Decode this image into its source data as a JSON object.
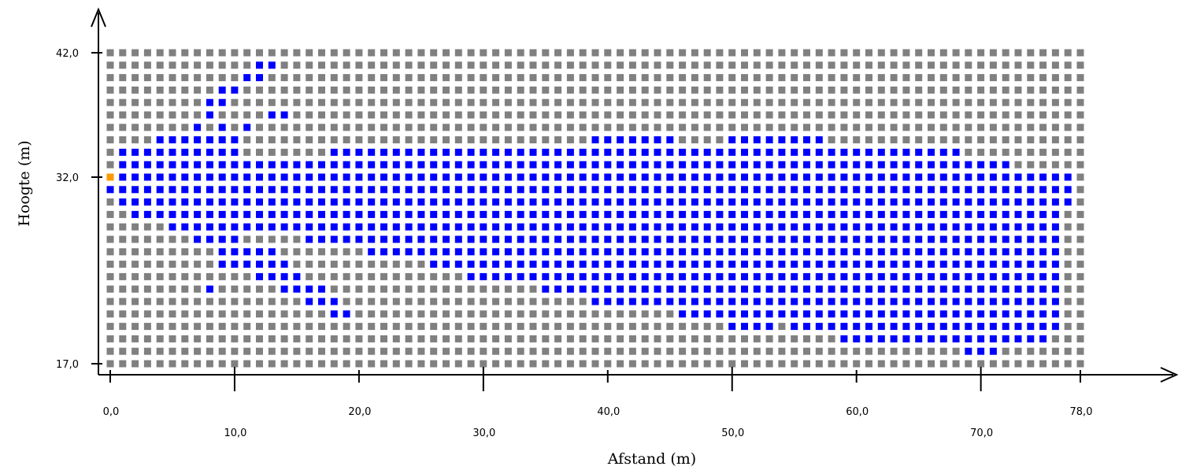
{
  "chart_data": {
    "type": "heatmap",
    "title": "",
    "xlabel": "Afstand (m)",
    "ylabel": "Hoogte (m)",
    "xlim": [
      0,
      78
    ],
    "ylim": [
      17,
      42
    ],
    "x_ticks": [
      {
        "value": 0,
        "label": "0,0",
        "row": "top"
      },
      {
        "value": 10,
        "label": "10,0",
        "row": "bottom"
      },
      {
        "value": 20,
        "label": "20,0",
        "row": "top"
      },
      {
        "value": 30,
        "label": "30,0",
        "row": "bottom"
      },
      {
        "value": 40,
        "label": "40,0",
        "row": "top"
      },
      {
        "value": 50,
        "label": "50,0",
        "row": "bottom"
      },
      {
        "value": 60,
        "label": "60,0",
        "row": "top"
      },
      {
        "value": 70,
        "label": "70,0",
        "row": "bottom"
      },
      {
        "value": 78,
        "label": "78,0",
        "row": "top"
      }
    ],
    "y_ticks": [
      {
        "value": 42,
        "label": "42,0"
      },
      {
        "value": 32,
        "label": "32,0"
      },
      {
        "value": 17,
        "label": "17,0"
      }
    ],
    "grid": {
      "x_step": 1,
      "y_step": 1
    },
    "colors": {
      "background_cell": "#808080",
      "filled_cell": "#0000ff",
      "marker_cell": "#ff9900"
    },
    "marker_point": {
      "x": 0,
      "y": 32
    },
    "blue_cells_by_row": [
      {
        "y": 41,
        "ranges": [
          [
            12,
            13
          ]
        ]
      },
      {
        "y": 40,
        "ranges": [
          [
            11,
            12
          ]
        ]
      },
      {
        "y": 39,
        "ranges": [
          [
            9,
            10
          ]
        ]
      },
      {
        "y": 38,
        "ranges": [
          [
            8,
            9
          ]
        ]
      },
      {
        "y": 37,
        "ranges": [
          [
            8,
            8
          ],
          [
            13,
            14
          ]
        ]
      },
      {
        "y": 36,
        "ranges": [
          [
            7,
            7
          ],
          [
            9,
            9
          ],
          [
            11,
            11
          ]
        ]
      },
      {
        "y": 35,
        "ranges": [
          [
            4,
            10
          ],
          [
            39,
            45
          ],
          [
            50,
            57
          ]
        ]
      },
      {
        "y": 34,
        "ranges": [
          [
            1,
            10
          ],
          [
            18,
            68
          ]
        ]
      },
      {
        "y": 33,
        "ranges": [
          [
            1,
            72
          ]
        ]
      },
      {
        "y": 32,
        "ranges": [
          [
            1,
            77
          ]
        ]
      },
      {
        "y": 31,
        "ranges": [
          [
            0,
            77
          ]
        ]
      },
      {
        "y": 30,
        "ranges": [
          [
            1,
            77
          ]
        ]
      },
      {
        "y": 29,
        "ranges": [
          [
            2,
            76
          ]
        ]
      },
      {
        "y": 28,
        "ranges": [
          [
            5,
            76
          ]
        ]
      },
      {
        "y": 27,
        "ranges": [
          [
            7,
            10
          ],
          [
            16,
            76
          ]
        ]
      },
      {
        "y": 26,
        "ranges": [
          [
            9,
            13
          ],
          [
            21,
            76
          ]
        ]
      },
      {
        "y": 25,
        "ranges": [
          [
            9,
            14
          ],
          [
            26,
            76
          ]
        ]
      },
      {
        "y": 24,
        "ranges": [
          [
            12,
            15
          ],
          [
            29,
            76
          ]
        ]
      },
      {
        "y": 23,
        "ranges": [
          [
            8,
            8
          ],
          [
            14,
            17
          ],
          [
            35,
            76
          ]
        ]
      },
      {
        "y": 22,
        "ranges": [
          [
            16,
            18
          ],
          [
            39,
            76
          ]
        ]
      },
      {
        "y": 21,
        "ranges": [
          [
            18,
            19
          ],
          [
            46,
            76
          ]
        ]
      },
      {
        "y": 20,
        "ranges": [
          [
            50,
            53
          ],
          [
            55,
            76
          ]
        ]
      },
      {
        "y": 19,
        "ranges": [
          [
            59,
            75
          ]
        ]
      },
      {
        "y": 18,
        "ranges": [
          [
            69,
            71
          ]
        ]
      }
    ]
  }
}
